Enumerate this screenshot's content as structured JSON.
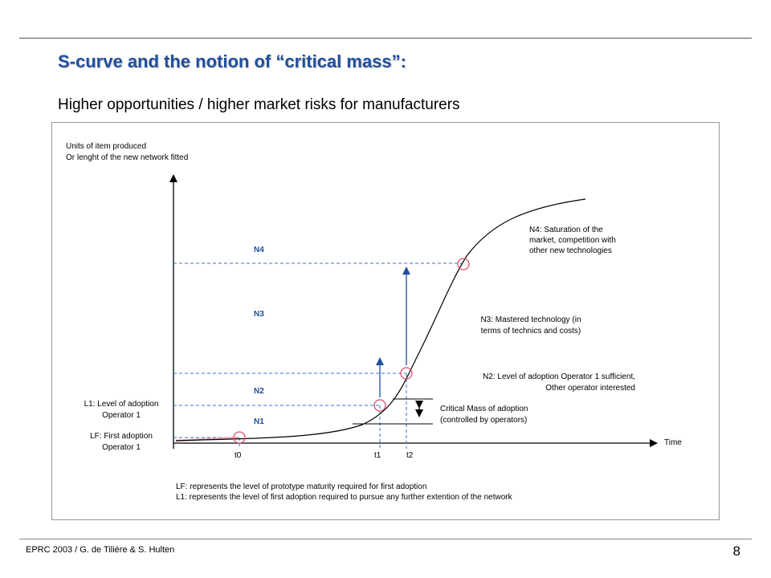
{
  "slide": {
    "title": "S-curve and the notion of “critical mass”:",
    "subtitle": "Higher opportunities / higher market risks for manufacturers",
    "footer": "EPRC 2003 / G. de Tilière & S. Hulten",
    "page_number": "8"
  },
  "diagram": {
    "y_axis_label": [
      "Units of item produced",
      "Or lenght of the new network fitted"
    ],
    "x_axis_label": "Time",
    "time_marks": {
      "t0": "t0",
      "t1": "t1",
      "t2": "t2"
    },
    "levels": {
      "n1": "N1",
      "n2": "N2",
      "n3": "N3",
      "n4": "N4"
    },
    "left_labels": {
      "l1": [
        "L1: Level of adoption",
        "Operator 1"
      ],
      "lf": [
        "LF: First adoption",
        "Operator 1"
      ]
    },
    "notes": {
      "n4": [
        "N4: Saturation of the",
        "market, competition with",
        "other new technologies"
      ],
      "n3": [
        "N3: Mastered technology (in",
        "terms of technics and costs)"
      ],
      "n2": [
        "N2: Level of adoption Operator 1 sufficient,",
        "Other operator interested"
      ],
      "critical_mass": [
        "Critical Mass of adoption",
        "(controlled by operators)"
      ]
    },
    "footnotes": [
      "LF: represents the level of prototype maturity required for first adoption",
      "L1: represents the level of first adoption required to pursue any further extention of the network"
    ],
    "colors": {
      "blue": "#1f4e9e",
      "dashed": "#3a6fd0",
      "circle": "#e0506e",
      "pink_segment": "#f2a6ae"
    }
  }
}
